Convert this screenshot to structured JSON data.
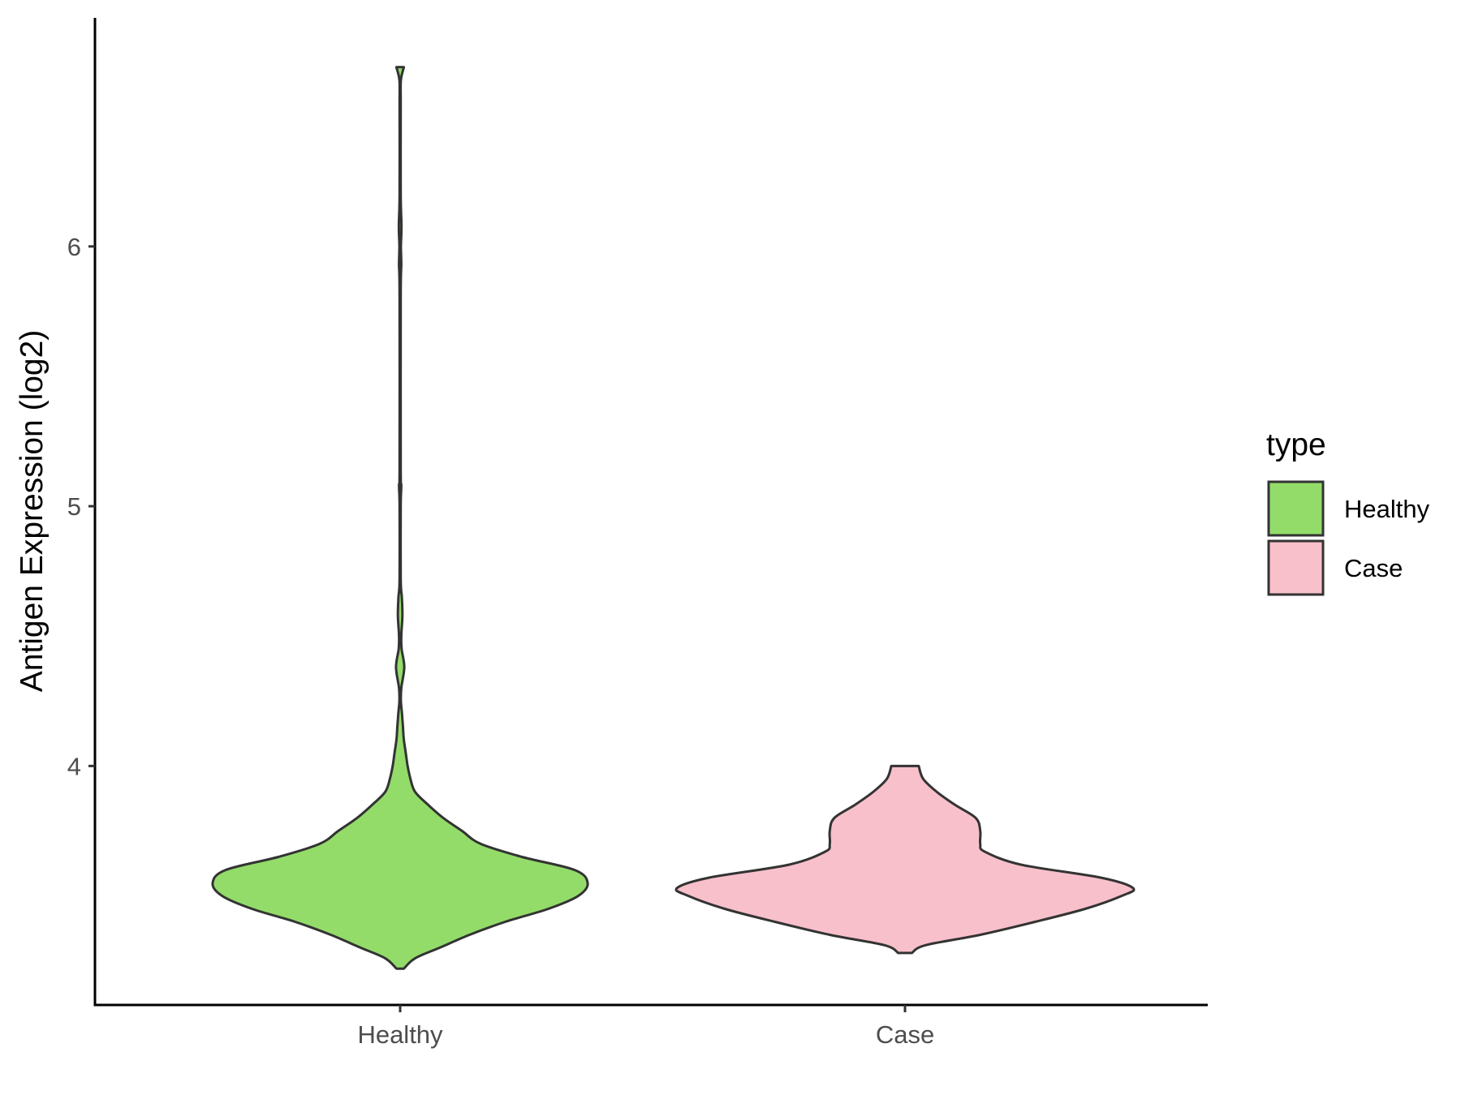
{
  "chart_data": {
    "type": "violin",
    "ylabel": "Antigen Expression (log2)",
    "xlabel": "",
    "categories": [
      "Healthy",
      "Case"
    ],
    "y_ticks": [
      4,
      5,
      6
    ],
    "ylim": [
      3.08,
      6.88
    ],
    "legend": {
      "title": "type",
      "placement": "right",
      "entries": [
        {
          "label": "Healthy",
          "color": "#93DC6A"
        },
        {
          "label": "Case",
          "color": "#F8C0CB"
        }
      ]
    },
    "grid": false,
    "series": [
      {
        "category": "Healthy",
        "color": "#93DC6A",
        "min": 3.22,
        "max": 6.69,
        "density_profile": [
          [
            3.22,
            0.02
          ],
          [
            3.26,
            0.08
          ],
          [
            3.3,
            0.21
          ],
          [
            3.35,
            0.37
          ],
          [
            3.4,
            0.56
          ],
          [
            3.45,
            0.79
          ],
          [
            3.5,
            0.95
          ],
          [
            3.55,
            1.0
          ],
          [
            3.6,
            0.93
          ],
          [
            3.65,
            0.65
          ],
          [
            3.7,
            0.43
          ],
          [
            3.75,
            0.33
          ],
          [
            3.8,
            0.23
          ],
          [
            3.85,
            0.15
          ],
          [
            3.9,
            0.08
          ],
          [
            3.95,
            0.055
          ],
          [
            4.0,
            0.04
          ],
          [
            4.05,
            0.03
          ],
          [
            4.1,
            0.02
          ],
          [
            4.15,
            0.015
          ],
          [
            4.2,
            0.01
          ],
          [
            4.25,
            0.004
          ],
          [
            4.3,
            0.006
          ],
          [
            4.38,
            0.022
          ],
          [
            4.45,
            0.008
          ],
          [
            4.5,
            0.006
          ],
          [
            4.58,
            0.012
          ],
          [
            4.65,
            0.009
          ],
          [
            4.72,
            0.003
          ],
          [
            5.0,
            0.003
          ],
          [
            5.08,
            0.006
          ],
          [
            5.15,
            0.003
          ],
          [
            5.8,
            0.003
          ],
          [
            5.93,
            0.006
          ],
          [
            6.0,
            0.004
          ],
          [
            6.08,
            0.007
          ],
          [
            6.2,
            0.003
          ],
          [
            6.55,
            0.003
          ],
          [
            6.64,
            0.004
          ],
          [
            6.69,
            0.02
          ]
        ]
      },
      {
        "category": "Case",
        "color": "#F8C0CB",
        "min": 3.28,
        "max": 4.0,
        "density_profile": [
          [
            3.28,
            0.03
          ],
          [
            3.31,
            0.09
          ],
          [
            3.35,
            0.33
          ],
          [
            3.4,
            0.57
          ],
          [
            3.45,
            0.79
          ],
          [
            3.5,
            0.95
          ],
          [
            3.53,
            1.0
          ],
          [
            3.57,
            0.86
          ],
          [
            3.62,
            0.51
          ],
          [
            3.67,
            0.35
          ],
          [
            3.7,
            0.33
          ],
          [
            3.75,
            0.33
          ],
          [
            3.8,
            0.31
          ],
          [
            3.85,
            0.22
          ],
          [
            3.9,
            0.14
          ],
          [
            3.95,
            0.08
          ],
          [
            4.0,
            0.06
          ]
        ]
      }
    ]
  }
}
